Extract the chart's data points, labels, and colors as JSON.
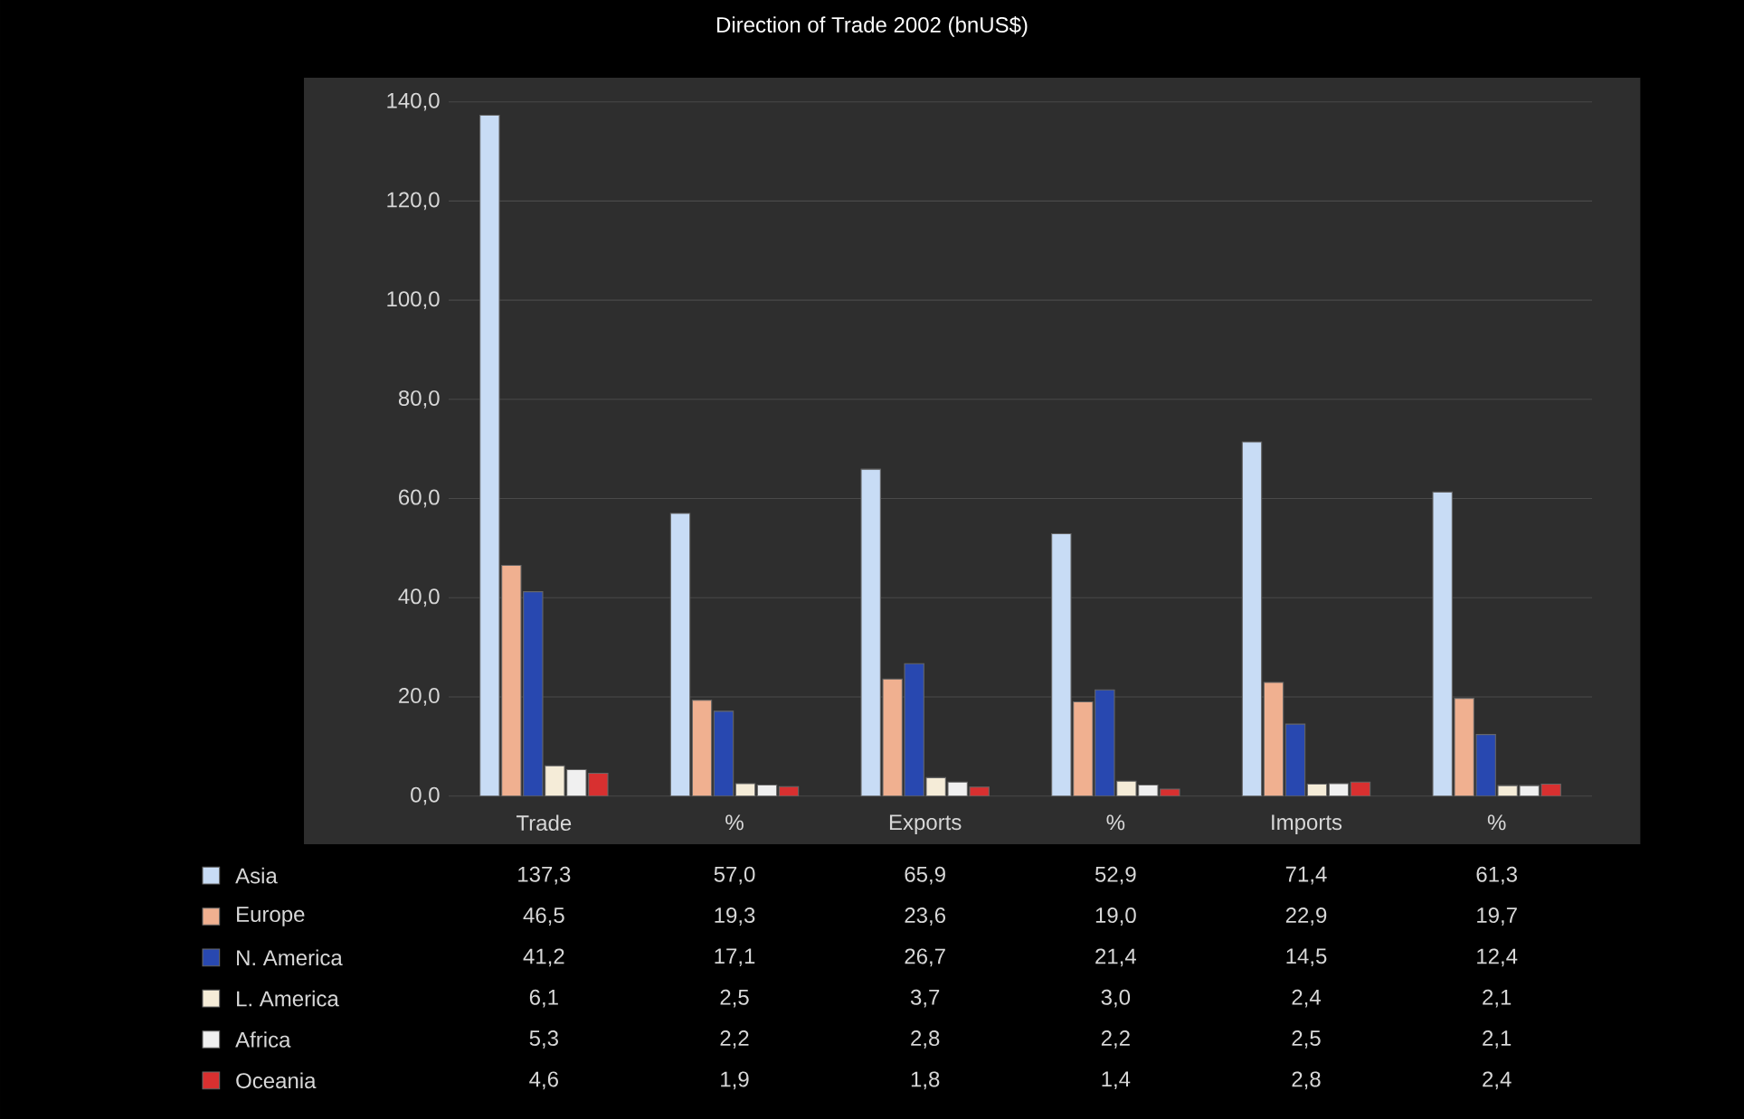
{
  "chart_data": {
    "type": "bar",
    "title": "Direction of Trade 2002 (bnUS$)",
    "categories": [
      "Trade",
      "%",
      "Exports",
      "%",
      "Imports",
      "%"
    ],
    "series": [
      {
        "name": "Asia",
        "color": "#c8dcf5",
        "values": [
          137.3,
          57.0,
          65.9,
          52.9,
          71.4,
          61.3
        ],
        "value_labels": [
          "137,3",
          "57,0",
          "65,9",
          "52,9",
          "71,4",
          "61,3"
        ]
      },
      {
        "name": "Europe",
        "color": "#f0b090",
        "values": [
          46.5,
          19.3,
          23.6,
          19.0,
          22.9,
          19.7
        ],
        "value_labels": [
          "46,5",
          "19,3",
          "23,6",
          "19,0",
          "22,9",
          "19,7"
        ]
      },
      {
        "name": "N. America",
        "color": "#2848b0",
        "values": [
          41.2,
          17.1,
          26.7,
          21.4,
          14.5,
          12.4
        ],
        "value_labels": [
          "41,2",
          "17,1",
          "26,7",
          "21,4",
          "14,5",
          "12,4"
        ]
      },
      {
        "name": "L. America",
        "color": "#f5ecd8",
        "values": [
          6.1,
          2.5,
          3.7,
          3.0,
          2.4,
          2.1
        ],
        "value_labels": [
          "6,1",
          "2,5",
          "3,7",
          "3,0",
          "2,4",
          "2,1"
        ]
      },
      {
        "name": "Africa",
        "color": "#f0f0f0",
        "values": [
          5.3,
          2.2,
          2.8,
          2.2,
          2.5,
          2.1
        ],
        "value_labels": [
          "5,3",
          "2,2",
          "2,8",
          "2,2",
          "2,5",
          "2,1"
        ]
      },
      {
        "name": "Oceania",
        "color": "#d83030",
        "values": [
          4.6,
          1.9,
          1.8,
          1.4,
          2.8,
          2.4
        ],
        "value_labels": [
          "4,6",
          "1,9",
          "1,8",
          "1,4",
          "2,8",
          "2,4"
        ]
      }
    ],
    "ylim": [
      0,
      140
    ],
    "yticks": [
      {
        "value": 0,
        "label": "0,0"
      },
      {
        "value": 20,
        "label": "20,0"
      },
      {
        "value": 40,
        "label": "40,0"
      },
      {
        "value": 60,
        "label": "60,0"
      },
      {
        "value": 80,
        "label": "80,0"
      },
      {
        "value": 100,
        "label": "100,0"
      },
      {
        "value": 120,
        "label": "120,0"
      },
      {
        "value": 140,
        "label": "140,0"
      }
    ],
    "grid": "y",
    "legend": "bottom left"
  }
}
